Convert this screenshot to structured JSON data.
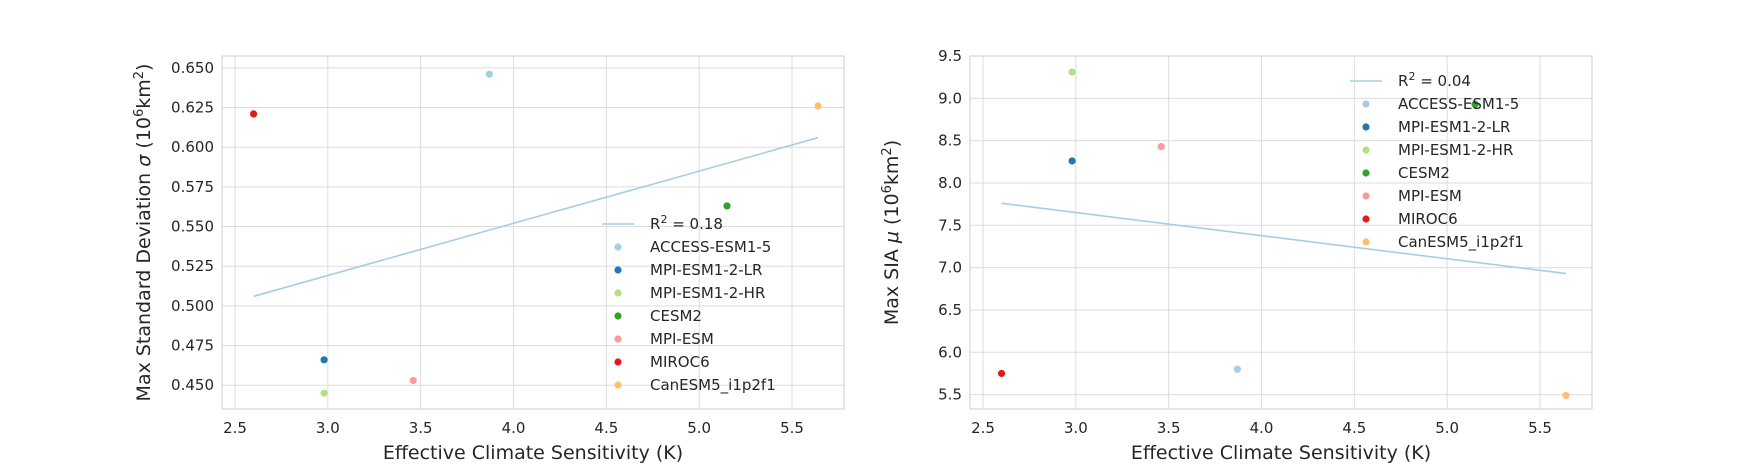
{
  "chart_data": [
    {
      "type": "scatter",
      "xlabel": "Effective Climate Sensitivity (K)",
      "ylabel_parts": [
        "Max Standard Deviation ",
        "σ",
        " (10",
        "6",
        "km",
        "2",
        ")"
      ],
      "xlim": [
        2.43,
        5.78
      ],
      "ylim": [
        0.435,
        0.6575
      ],
      "xticks": [
        2.5,
        3.0,
        3.5,
        4.0,
        4.5,
        5.0,
        5.5
      ],
      "xtick_labels": [
        "2.5",
        "3.0",
        "3.5",
        "4.0",
        "4.5",
        "5.0",
        "5.5"
      ],
      "yticks": [
        0.45,
        0.475,
        0.5,
        0.525,
        0.55,
        0.575,
        0.6,
        0.625,
        0.65
      ],
      "ytick_labels": [
        "0.450",
        "0.475",
        "0.500",
        "0.525",
        "0.550",
        "0.575",
        "0.600",
        "0.625",
        "0.650"
      ],
      "grid": true,
      "legend_position": "lower-right",
      "fit": {
        "label_parts": [
          "R",
          "2",
          " = 0.18"
        ],
        "x": [
          2.6,
          5.64
        ],
        "y": [
          0.506,
          0.606
        ],
        "color": "#a6cee3"
      },
      "series": [
        {
          "name": "ACCESS-ESM1-5",
          "color": "#a6cee3",
          "x": [
            3.87
          ],
          "y": [
            0.646
          ]
        },
        {
          "name": "MPI-ESM1-2-LR",
          "color": "#1f78b4",
          "x": [
            2.98
          ],
          "y": [
            0.466
          ]
        },
        {
          "name": "MPI-ESM1-2-HR",
          "color": "#b2df8a",
          "x": [
            2.98
          ],
          "y": [
            0.445
          ]
        },
        {
          "name": "CESM2",
          "color": "#33a02c",
          "x": [
            5.15
          ],
          "y": [
            0.563
          ]
        },
        {
          "name": "MPI-ESM",
          "color": "#fb9a99",
          "x": [
            3.46
          ],
          "y": [
            0.453
          ]
        },
        {
          "name": "MIROC6",
          "color": "#e31a1c",
          "x": [
            2.6
          ],
          "y": [
            0.621
          ]
        },
        {
          "name": "CanESM5_i1p2f1",
          "color": "#fdbf6f",
          "x": [
            5.64
          ],
          "y": [
            0.626
          ]
        }
      ]
    },
    {
      "type": "scatter",
      "xlabel": "Effective Climate Sensitivity (K)",
      "ylabel_parts": [
        "Max SIA ",
        "μ",
        " (10",
        "6",
        "km",
        "2",
        ")"
      ],
      "xlim": [
        2.43,
        5.78
      ],
      "ylim": [
        5.33,
        9.5
      ],
      "xticks": [
        2.5,
        3.0,
        3.5,
        4.0,
        4.5,
        5.0,
        5.5
      ],
      "xtick_labels": [
        "2.5",
        "3.0",
        "3.5",
        "4.0",
        "4.5",
        "5.0",
        "5.5"
      ],
      "yticks": [
        5.5,
        6.0,
        6.5,
        7.0,
        7.5,
        8.0,
        8.5,
        9.0,
        9.5
      ],
      "ytick_labels": [
        "5.5",
        "6.0",
        "6.5",
        "7.0",
        "7.5",
        "8.0",
        "8.5",
        "9.0",
        "9.5"
      ],
      "grid": true,
      "legend_position": "upper-right",
      "fit": {
        "label_parts": [
          "R",
          "2",
          " = 0.04"
        ],
        "x": [
          2.6,
          5.64
        ],
        "y": [
          7.76,
          6.93
        ],
        "color": "#a6cee3"
      },
      "series": [
        {
          "name": "ACCESS-ESM1-5",
          "color": "#a6cee3",
          "x": [
            3.87
          ],
          "y": [
            5.8
          ]
        },
        {
          "name": "MPI-ESM1-2-LR",
          "color": "#1f78b4",
          "x": [
            2.98
          ],
          "y": [
            8.26
          ]
        },
        {
          "name": "MPI-ESM1-2-HR",
          "color": "#b2df8a",
          "x": [
            2.98
          ],
          "y": [
            9.31
          ]
        },
        {
          "name": "CESM2",
          "color": "#33a02c",
          "x": [
            5.15
          ],
          "y": [
            8.93
          ]
        },
        {
          "name": "MPI-ESM",
          "color": "#fb9a99",
          "x": [
            3.46
          ],
          "y": [
            8.43
          ]
        },
        {
          "name": "MIROC6",
          "color": "#e31a1c",
          "x": [
            2.6
          ],
          "y": [
            5.75
          ]
        },
        {
          "name": "CanESM5_i1p2f1",
          "color": "#fdbf6f",
          "x": [
            5.64
          ],
          "y": [
            5.49
          ]
        }
      ]
    }
  ]
}
